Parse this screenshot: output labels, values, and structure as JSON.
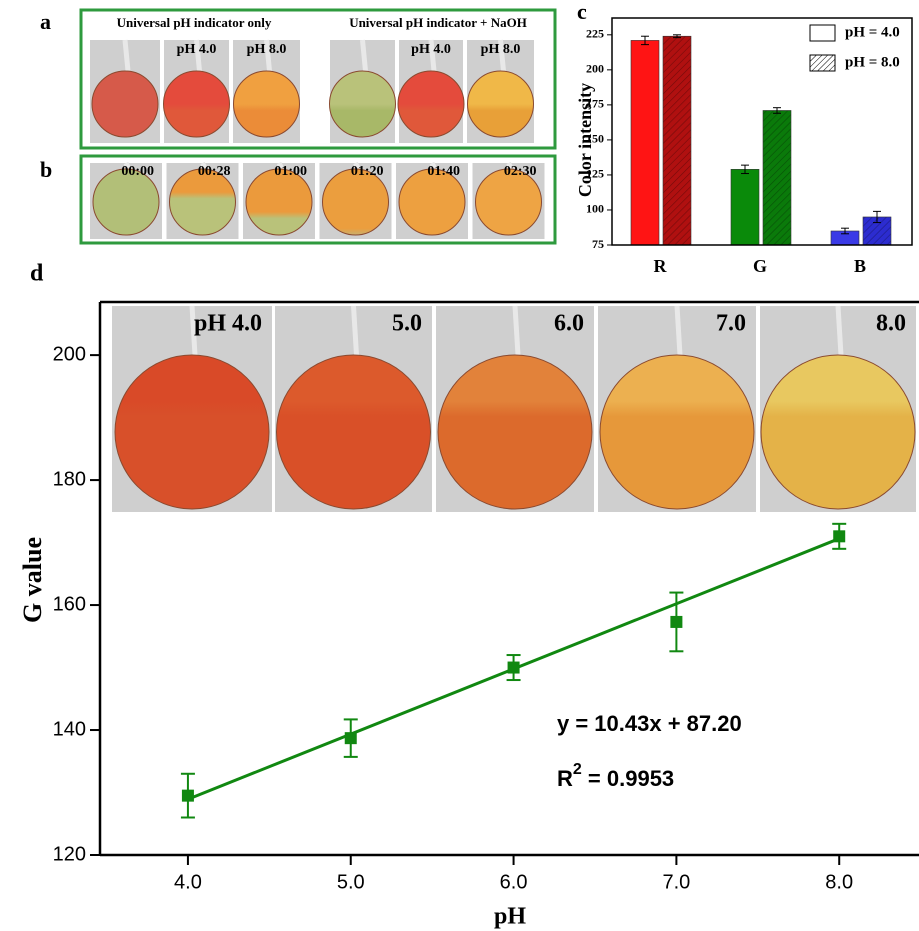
{
  "panel_a": {
    "label": "a",
    "groups": [
      {
        "title": "Universal pH indicator only",
        "photo_labels": [
          "pH 4.0",
          "pH 8.0"
        ]
      },
      {
        "title": "Universal pH indicator + NaOH",
        "photo_labels": [
          "pH 4.0",
          "pH 8.0"
        ]
      }
    ]
  },
  "panel_b": {
    "label": "b",
    "times": [
      "00:00",
      "00:28",
      "01:00",
      "01:20",
      "01:40",
      "02:30"
    ]
  },
  "chart_data": [
    {
      "type": "bar",
      "panel_label": "c",
      "y_label": "Color intensity",
      "categories": [
        "R",
        "G",
        "B"
      ],
      "series": [
        {
          "name": "pH = 4.0",
          "colors": [
            "#ff1414",
            "#0a8a0a",
            "#3a3ae6"
          ],
          "hatch": false,
          "values": [
            221,
            129,
            85
          ],
          "errors": [
            3,
            3,
            2
          ]
        },
        {
          "name": "pH = 8.0",
          "colors": [
            "#b01010",
            "#0a7a0a",
            "#2c2cd0"
          ],
          "hatch": true,
          "values": [
            224,
            171,
            95
          ],
          "errors": [
            1,
            2,
            4
          ]
        }
      ],
      "ylim": [
        75,
        237
      ],
      "yticks": [
        75,
        100,
        125,
        150,
        175,
        200,
        225
      ],
      "legend": "upper right"
    },
    {
      "type": "scatter",
      "panel_label": "d",
      "x_label": "pH",
      "y_label": "G value",
      "color": "#118811",
      "x": [
        4,
        5,
        6,
        7,
        8
      ],
      "values": [
        129.5,
        138.7,
        150,
        157.3,
        171
      ],
      "errors": [
        3.5,
        3,
        2,
        4.7,
        2
      ],
      "fit": {
        "slope": 10.43,
        "intercept": 87.2
      },
      "annotations": [
        "y = 10.43x + 87.20",
        "R",
        "2",
        " = 0.9953"
      ],
      "photo_labels": [
        "pH 4.0",
        "5.0",
        "6.0",
        "7.0",
        "8.0"
      ],
      "xlim": [
        3.46,
        8.49
      ],
      "xticks": [
        {
          "value": 4,
          "label": "4.0"
        },
        {
          "value": 5,
          "label": "5.0"
        },
        {
          "value": 6,
          "label": "6.0"
        },
        {
          "value": 7,
          "label": "7.0"
        },
        {
          "value": 8,
          "label": "8.0"
        }
      ],
      "ylim": [
        120,
        208.5
      ],
      "yticks": [
        120,
        140,
        160,
        180,
        200
      ]
    }
  ]
}
